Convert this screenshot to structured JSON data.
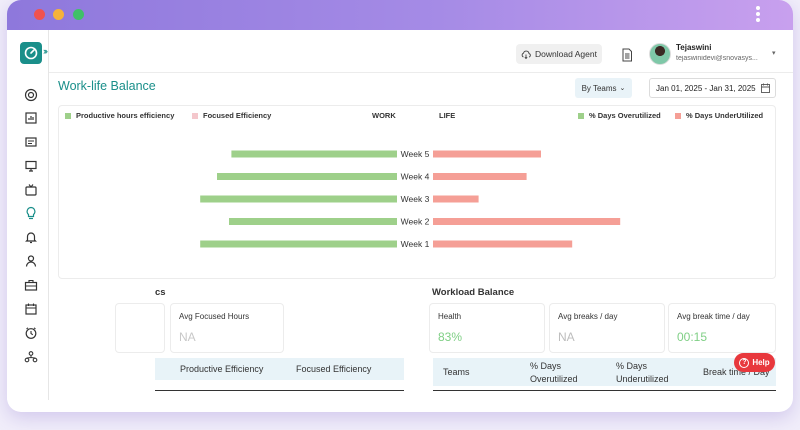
{
  "colors": {
    "accent": "#1a8f8a",
    "work": "#9ed08a",
    "life": "#f59f96",
    "titlebar_start": "#8e78dc",
    "help": "#e8383d"
  },
  "header": {
    "download_label": "Download Agent",
    "user_name": "Tejaswini",
    "user_email": "tejaswinidevi@snovasys..."
  },
  "page": {
    "title": "Work-life Balance",
    "team_select": "By Teams",
    "date_range": "Jan 01, 2025 - Jan 31, 2025"
  },
  "sidebar": {
    "icons": [
      "dashboard-icon",
      "report-icon",
      "calendar-list-icon",
      "monitor-icon",
      "tv-icon",
      "bulb-icon",
      "alarm-bell-icon",
      "user-icon",
      "briefcase-icon",
      "calendar-icon",
      "clock-icon",
      "team-icon"
    ]
  },
  "chart_data": {
    "type": "bar",
    "legend": [
      {
        "label": "Productive hours efficiency",
        "color": "#9ed08a"
      },
      {
        "label": "Focused Efficiency",
        "color": "#f4c7cc"
      },
      {
        "label": "% Days Overutilized",
        "color": "#9ed08a"
      },
      {
        "label": "% Days UnderUtilized",
        "color": "#f59f96"
      }
    ],
    "work_label": "WORK",
    "life_label": "LIFE",
    "categories": [
      "Week 5",
      "Week 4",
      "Week 3",
      "Week 2",
      "Week 1"
    ],
    "work_values": [
      0.69,
      0.75,
      0.82,
      0.7,
      0.82
    ],
    "life_values": [
      0.45,
      0.39,
      0.19,
      0.78,
      0.58
    ]
  },
  "productivity": {
    "title_fragment": "cs",
    "avg_focused_label": "Avg Focused Hours",
    "avg_focused_value": "NA",
    "table_headers": [
      "Productive Efficiency",
      "Focused Efficiency"
    ]
  },
  "workload": {
    "title": "Workload Balance",
    "health_label": "Health",
    "health_value": "83%",
    "breaks_label": "Avg breaks / day",
    "breaks_value": "NA",
    "break_time_label": "Avg break time / day",
    "break_time_value": "00:15",
    "table_headers": [
      "Teams",
      "% Days Overutilized",
      "% Days Underutilized",
      "Break time / Day"
    ]
  },
  "help": {
    "label": "Help"
  }
}
